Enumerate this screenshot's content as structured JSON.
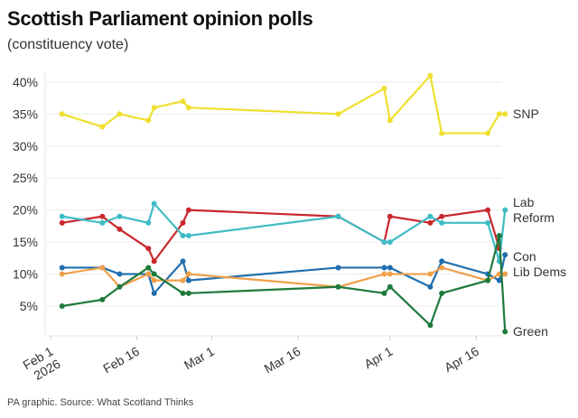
{
  "title": "Scottish Parliament opinion polls",
  "subtitle": "(constituency vote)",
  "source": "PA graphic. Source: What Scotland Thinks",
  "chart_data": {
    "type": "line",
    "title": "Scottish Parliament opinion polls",
    "subtitle": "(constituency vote)",
    "ylim": [
      0,
      42
    ],
    "yticks": [
      5,
      10,
      15,
      20,
      25,
      30,
      35,
      40
    ],
    "ytick_labels": [
      "5%",
      "10%",
      "15%",
      "20%",
      "25%",
      "30%",
      "35%",
      "40%"
    ],
    "xticks": [
      {
        "date": "2026-02-01",
        "label": [
          "Feb 1",
          "2026"
        ]
      },
      {
        "date": "2026-02-16",
        "label": [
          "Feb 16"
        ]
      },
      {
        "date": "2026-03-01",
        "label": [
          "Mar 1"
        ]
      },
      {
        "date": "2026-03-16",
        "label": [
          "Mar 16"
        ]
      },
      {
        "date": "2026-04-01",
        "label": [
          "Apr 1"
        ]
      },
      {
        "date": "2026-04-16",
        "label": [
          "Apr 16"
        ]
      }
    ],
    "grid": true,
    "legend": "direct labels at right",
    "x": [
      "2026-02-03",
      "2026-02-10",
      "2026-02-13",
      "2026-02-18",
      "2026-02-19",
      "2026-02-24",
      "2026-02-25",
      "2026-03-23",
      "2026-03-31",
      "2026-04-01",
      "2026-04-08",
      "2026-04-10",
      "2026-04-18",
      "2026-04-20",
      "2026-04-21"
    ],
    "series": [
      {
        "name": "SNP",
        "color": "#efdf2e",
        "values": [
          35,
          33,
          35,
          34,
          36,
          37,
          36,
          35,
          39,
          34,
          41,
          32,
          32,
          35,
          35
        ]
      },
      {
        "name": "Lab",
        "color": "#c9282d",
        "values": [
          18,
          19,
          17,
          14,
          12,
          18,
          20,
          19,
          15,
          19,
          18,
          19,
          20,
          14,
          null
        ]
      },
      {
        "name": "Reform",
        "color": "#3fbcc4",
        "values": [
          19,
          18,
          19,
          18,
          21,
          16,
          16,
          19,
          15,
          15,
          19,
          18,
          18,
          12,
          20
        ]
      },
      {
        "name": "Con",
        "color": "#1f6eae",
        "values": [
          11,
          11,
          10,
          10,
          7,
          12,
          9,
          11,
          11,
          11,
          8,
          12,
          10,
          9,
          13
        ]
      },
      {
        "name": "Lib Dems",
        "color": "#f0a04b",
        "values": [
          10,
          11,
          8,
          10,
          9,
          9,
          10,
          8,
          10,
          10,
          10,
          11,
          9,
          10,
          10
        ]
      },
      {
        "name": "Green",
        "color": "#1e7a3c",
        "values": [
          5,
          6,
          8,
          11,
          10,
          7,
          7,
          8,
          7,
          8,
          2,
          7,
          9,
          16,
          1
        ]
      }
    ]
  }
}
